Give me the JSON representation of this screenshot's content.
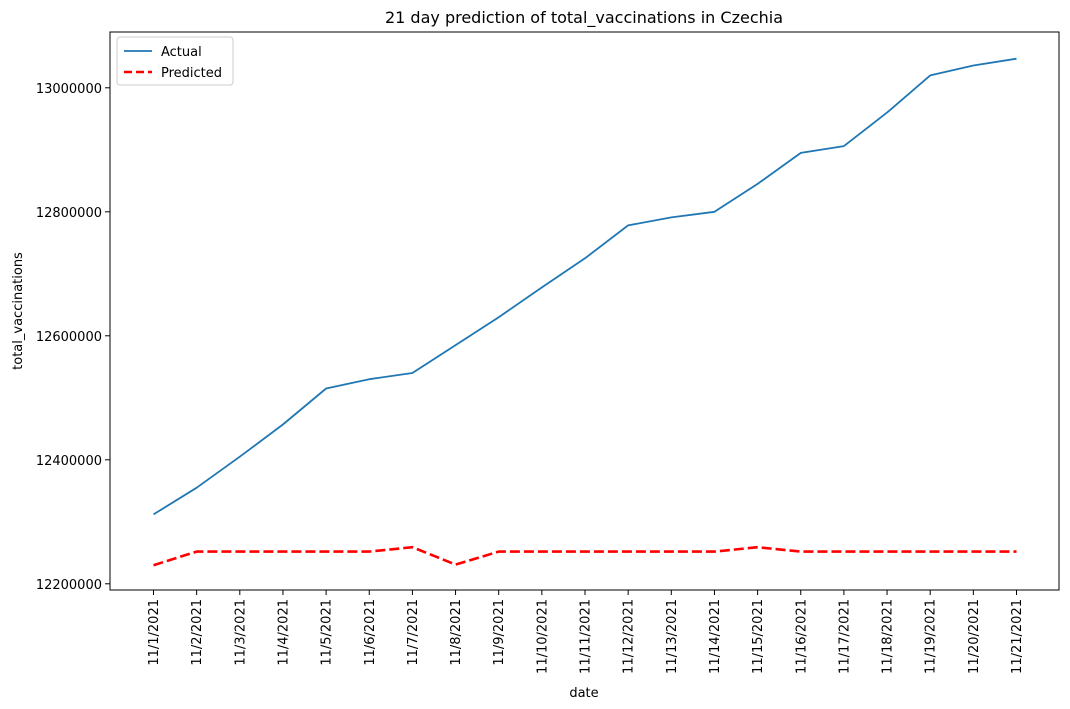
{
  "chart_data": {
    "type": "line",
    "title": "21 day prediction of total_vaccinations in Czechia",
    "xlabel": "date",
    "ylabel": "total_vaccinations",
    "categories": [
      "11/1/2021",
      "11/2/2021",
      "11/3/2021",
      "11/4/2021",
      "11/5/2021",
      "11/6/2021",
      "11/7/2021",
      "11/8/2021",
      "11/9/2021",
      "11/10/2021",
      "11/11/2021",
      "11/12/2021",
      "11/13/2021",
      "11/14/2021",
      "11/15/2021",
      "11/16/2021",
      "11/17/2021",
      "11/18/2021",
      "11/19/2021",
      "11/20/2021",
      "11/21/2021"
    ],
    "ylim": [
      12190000,
      13090000
    ],
    "yticks": [
      12200000,
      12400000,
      12600000,
      12800000,
      13000000
    ],
    "ytick_labels": [
      "12200000",
      "12400000",
      "12600000",
      "12800000",
      "13000000"
    ],
    "grid": false,
    "legend_position": "top-left",
    "series": [
      {
        "name": "Actual",
        "color": "#1f77b4",
        "style": "solid",
        "values": [
          12312000,
          12355000,
          12405000,
          12457000,
          12515000,
          12530000,
          12540000,
          12585000,
          12630000,
          12678000,
          12725000,
          12778000,
          12791000,
          12800000,
          12845000,
          12895000,
          12906000,
          12960000,
          13020000,
          13036000,
          13047000
        ]
      },
      {
        "name": "Predicted",
        "color": "#ff0000",
        "style": "dashed",
        "values": [
          12230000,
          12252000,
          12252000,
          12252000,
          12252000,
          12252000,
          12259000,
          12231000,
          12252000,
          12252000,
          12252000,
          12252000,
          12252000,
          12252000,
          12259000,
          12252000,
          12252000,
          12252000,
          12252000,
          12252000,
          12252000
        ]
      }
    ]
  }
}
